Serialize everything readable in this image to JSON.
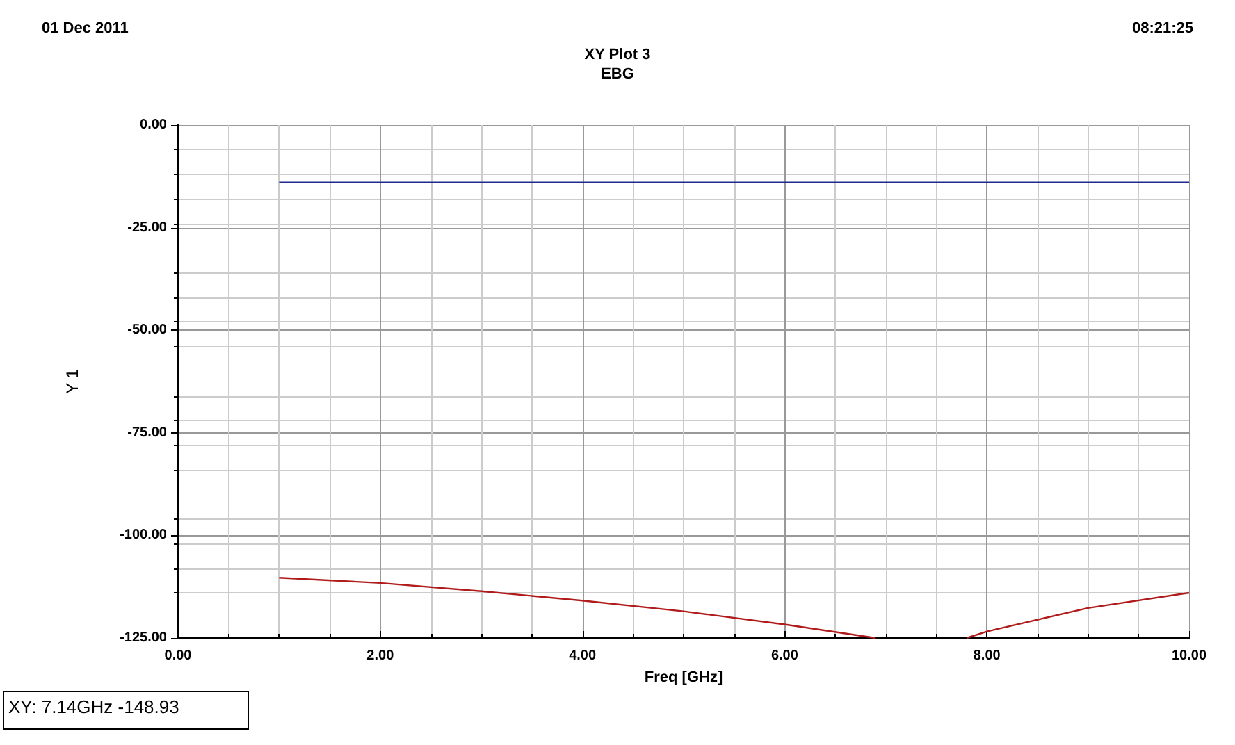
{
  "chart_data": {
    "type": "line",
    "title": "XY Plot 3",
    "subtitle": "EBG",
    "xlabel": "Freq [GHz]",
    "ylabel": "Y 1",
    "annotations": [
      "01 Dec 2011",
      "08:21:25",
      "XY: 7.14GHz -148.93"
    ],
    "xlim": [
      0,
      10
    ],
    "xticks": [
      {
        "value": 0,
        "label": "0.00"
      },
      {
        "value": 2,
        "label": "2.00"
      },
      {
        "value": 4,
        "label": "4.00"
      },
      {
        "value": 6,
        "label": "6.00"
      },
      {
        "value": 8,
        "label": "8.00"
      },
      {
        "value": 10,
        "label": "10.00"
      }
    ],
    "ylim": [
      -125,
      0
    ],
    "yticks": [
      {
        "value": -125,
        "label": "-125.00"
      },
      {
        "value": -100,
        "label": "-100.00"
      },
      {
        "value": -75,
        "label": "-75.00"
      },
      {
        "value": -50,
        "label": "-50.00"
      },
      {
        "value": -25,
        "label": "-25.00"
      },
      {
        "value": 0,
        "label": "0.00"
      }
    ],
    "grid": true,
    "marker": "none",
    "line_style": "solid",
    "series": [
      {
        "color": "#1f2a8c",
        "x": [
          1,
          10
        ],
        "values": [
          -14,
          -14
        ]
      },
      {
        "color": "#b01c1c",
        "x": [
          1,
          2,
          3,
          4,
          5,
          6,
          6.9,
          7.14,
          7.8,
          8,
          9,
          10
        ],
        "values": [
          -110.3,
          -111.6,
          -113.6,
          -115.9,
          -118.5,
          -121.7,
          -125,
          null,
          -125,
          -123.4,
          -117.7,
          -114
        ]
      }
    ]
  }
}
